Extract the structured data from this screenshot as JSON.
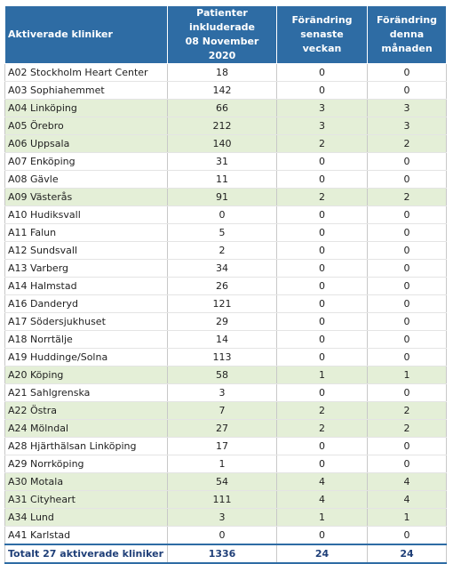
{
  "header": {
    "col1": "Aktiverade kliniker",
    "col2": [
      "Patienter",
      "inkluderade",
      "08 November 2020"
    ],
    "col3": [
      "Förändring",
      "senaste veckan"
    ],
    "col4": [
      "Förändring",
      "denna",
      "månaden"
    ]
  },
  "rows": [
    {
      "name": "A02 Stockholm Heart Center",
      "patients": "18",
      "week": "0",
      "month": "0",
      "highlight": false
    },
    {
      "name": "A03 Sophiahemmet",
      "patients": "142",
      "week": "0",
      "month": "0",
      "highlight": false
    },
    {
      "name": "A04 Linköping",
      "patients": "66",
      "week": "3",
      "month": "3",
      "highlight": true
    },
    {
      "name": "A05 Örebro",
      "patients": "212",
      "week": "3",
      "month": "3",
      "highlight": true
    },
    {
      "name": "A06 Uppsala",
      "patients": "140",
      "week": "2",
      "month": "2",
      "highlight": true
    },
    {
      "name": "A07 Enköping",
      "patients": "31",
      "week": "0",
      "month": "0",
      "highlight": false
    },
    {
      "name": "A08 Gävle",
      "patients": "11",
      "week": "0",
      "month": "0",
      "highlight": false
    },
    {
      "name": "A09 Västerås",
      "patients": "91",
      "week": "2",
      "month": "2",
      "highlight": true
    },
    {
      "name": "A10 Hudiksvall",
      "patients": "0",
      "week": "0",
      "month": "0",
      "highlight": false
    },
    {
      "name": "A11 Falun",
      "patients": "5",
      "week": "0",
      "month": "0",
      "highlight": false
    },
    {
      "name": "A12 Sundsvall",
      "patients": "2",
      "week": "0",
      "month": "0",
      "highlight": false
    },
    {
      "name": "A13 Varberg",
      "patients": "34",
      "week": "0",
      "month": "0",
      "highlight": false
    },
    {
      "name": "A14 Halmstad",
      "patients": "26",
      "week": "0",
      "month": "0",
      "highlight": false
    },
    {
      "name": "A16 Danderyd",
      "patients": "121",
      "week": "0",
      "month": "0",
      "highlight": false
    },
    {
      "name": "A17 Södersjukhuset",
      "patients": "29",
      "week": "0",
      "month": "0",
      "highlight": false
    },
    {
      "name": "A18 Norrtälje",
      "patients": "14",
      "week": "0",
      "month": "0",
      "highlight": false
    },
    {
      "name": "A19 Huddinge/Solna",
      "patients": "113",
      "week": "0",
      "month": "0",
      "highlight": false
    },
    {
      "name": "A20 Köping",
      "patients": "58",
      "week": "1",
      "month": "1",
      "highlight": true
    },
    {
      "name": "A21 Sahlgrenska",
      "patients": "3",
      "week": "0",
      "month": "0",
      "highlight": false
    },
    {
      "name": "A22 Östra",
      "patients": "7",
      "week": "2",
      "month": "2",
      "highlight": true
    },
    {
      "name": "A24 Mölndal",
      "patients": "27",
      "week": "2",
      "month": "2",
      "highlight": true
    },
    {
      "name": "A28 Hjärthälsan Linköping",
      "patients": "17",
      "week": "0",
      "month": "0",
      "highlight": false
    },
    {
      "name": "A29 Norrköping",
      "patients": "1",
      "week": "0",
      "month": "0",
      "highlight": false
    },
    {
      "name": "A30 Motala",
      "patients": "54",
      "week": "4",
      "month": "4",
      "highlight": true
    },
    {
      "name": "A31 Cityheart",
      "patients": "111",
      "week": "4",
      "month": "4",
      "highlight": true
    },
    {
      "name": "A34 Lund",
      "patients": "3",
      "week": "1",
      "month": "1",
      "highlight": true
    },
    {
      "name": "A41 Karlstad",
      "patients": "0",
      "week": "0",
      "month": "0",
      "highlight": false
    }
  ],
  "total": {
    "label": "Totalt 27 aktiverade kliniker",
    "patients": "1336",
    "week": "24",
    "month": "24"
  },
  "colors": {
    "header_bg": "#2e6ca4",
    "highlight_row": "#e4efd7",
    "total_text": "#1f3f78"
  }
}
